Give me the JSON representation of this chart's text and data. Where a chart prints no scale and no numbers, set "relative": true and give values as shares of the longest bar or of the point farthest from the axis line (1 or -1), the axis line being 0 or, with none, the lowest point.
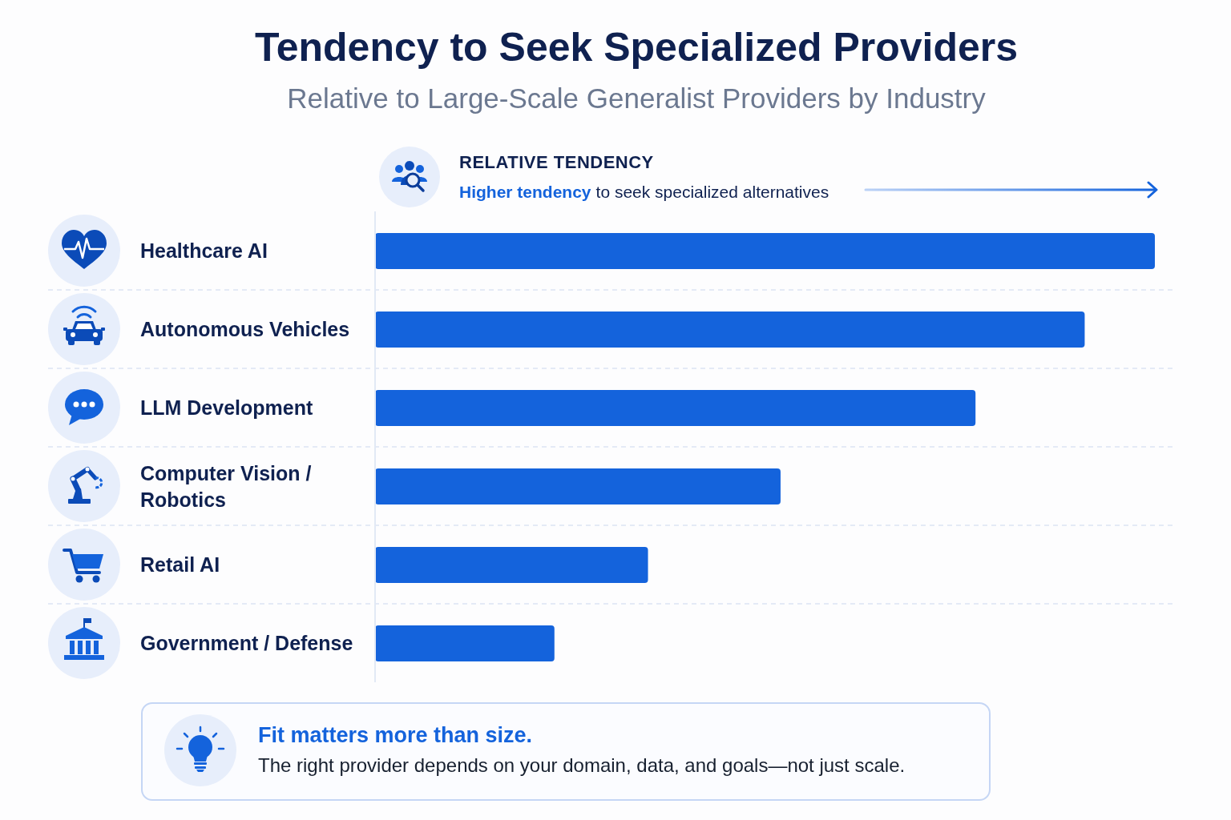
{
  "chart_data": {
    "type": "bar",
    "orientation": "horizontal",
    "relative": true,
    "title": "Tendency to Seek Specialized Providers",
    "subtitle": "Relative to Large-Scale Generalist Providers by Industry",
    "xlabel": "RELATIVE TENDENCY",
    "categories": [
      "Healthcare AI",
      "Autonomous Vehicles",
      "LLM Development",
      "Computer Vision / Robotics",
      "Retail AI",
      "Government / Defense"
    ],
    "values": [
      1,
      0.91,
      0.77,
      0.52,
      0.35,
      0.23
    ],
    "color": "#1463dc",
    "grid": "y",
    "annotations": [
      "Higher tendency",
      "to seek specialized alternatives",
      "Fit matters more than size.",
      "The right provider depends on your domain, data, and goals—not just scale."
    ]
  }
}
